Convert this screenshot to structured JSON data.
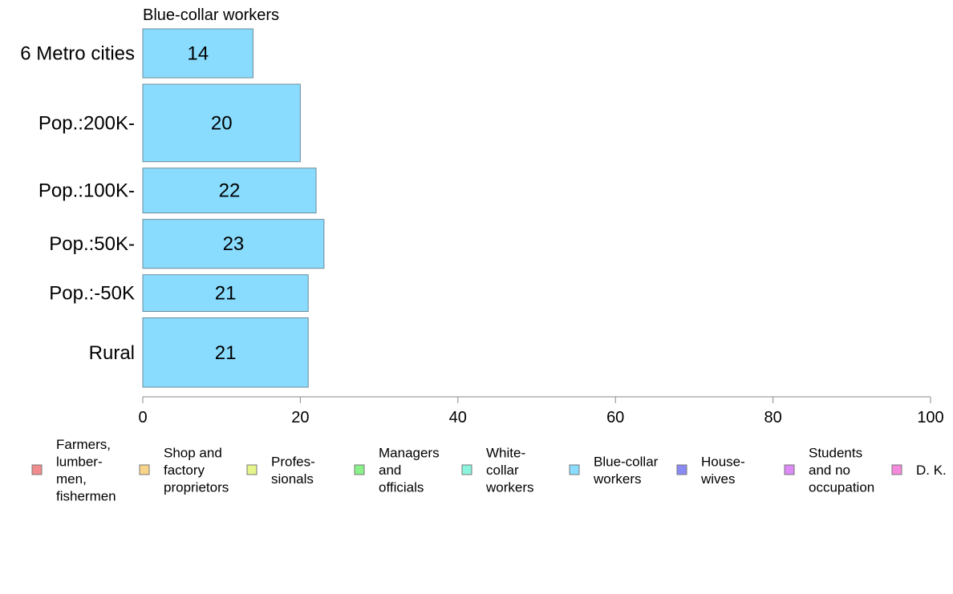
{
  "chart_data": {
    "type": "bar",
    "orientation": "horizontal",
    "title": "Blue-collar workers",
    "categories": [
      "6 Metro cities",
      "Pop.:200K-",
      "Pop.:100K-",
      "Pop.:50K-",
      "Pop.:-50K",
      "Rural"
    ],
    "values": [
      14,
      20,
      22,
      23,
      21,
      21
    ],
    "category_widths": [
      0.12,
      0.19,
      0.11,
      0.12,
      0.09,
      0.17
    ],
    "xlim": [
      0,
      100
    ],
    "xticks": [
      0,
      20,
      40,
      60,
      80,
      100
    ],
    "grid": false,
    "bar_color": "#8adcff",
    "legend_placement": "bottom",
    "legend": [
      {
        "label": "Farmers,\nlumber-\nmen,\nfishermen",
        "color": "#f28b8b"
      },
      {
        "label": "Shop and\nfactory\nproprietors",
        "color": "#f7d48a"
      },
      {
        "label": "Profes-\nsionals",
        "color": "#e6f58a"
      },
      {
        "label": "Managers\nand\nofficials",
        "color": "#8af08a"
      },
      {
        "label": "White-\ncollar\nworkers",
        "color": "#8af5dc"
      },
      {
        "label": "Blue-collar\nworkers",
        "color": "#8adcff"
      },
      {
        "label": "House-\nwives",
        "color": "#8a8af5"
      },
      {
        "label": "Students\nand no\noccupation",
        "color": "#dc8af5"
      },
      {
        "label": "D. K.",
        "color": "#f58adc"
      }
    ]
  }
}
